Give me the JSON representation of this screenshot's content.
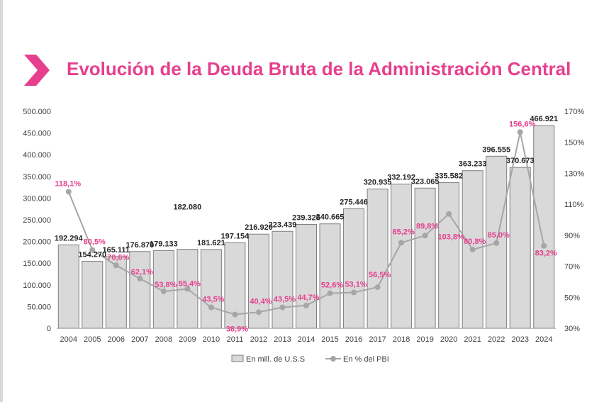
{
  "title": "Evolución de la Deuda Bruta de la Administración Central",
  "colors": {
    "accent": "#e63f8d",
    "bar_fill": "#d9d9d9",
    "bar_stroke": "#7f7f7f",
    "line": "#a6a6a6",
    "axis_text": "#404040"
  },
  "chart_data": {
    "type": "bar",
    "categories": [
      "2004",
      "2005",
      "2006",
      "2007",
      "2008",
      "2009",
      "2010",
      "2011",
      "2012",
      "2013",
      "2014",
      "2015",
      "2016",
      "2017",
      "2018",
      "2019",
      "2020",
      "2021",
      "2022",
      "2023",
      "2024"
    ],
    "series": [
      {
        "name": "En mill. de U.S.S",
        "type": "bar",
        "axis": "left",
        "values": [
          192294,
          154270,
          165111,
          176870,
          179133,
          182080,
          181621,
          197154,
          216920,
          223439,
          239326,
          240665,
          275446,
          320935,
          332192,
          323065,
          335582,
          363233,
          396555,
          370673,
          466921
        ],
        "labels": [
          "192.294",
          "154.270",
          "165.111",
          "176.870",
          "179.133",
          "182.080",
          "181.621",
          "197.154",
          "216.920",
          "223.439",
          "239.326",
          "240.665",
          "275.446",
          "320.935",
          "332.192",
          "323.065",
          "335.582",
          "363.233",
          "396.555",
          "370.673",
          "466.921"
        ]
      },
      {
        "name": "En % del PBI",
        "type": "line",
        "axis": "right",
        "values": [
          118.1,
          80.5,
          70.6,
          62.1,
          53.8,
          55.4,
          43.5,
          38.9,
          40.4,
          43.5,
          44.7,
          52.6,
          53.1,
          56.5,
          85.2,
          89.8,
          103.8,
          80.8,
          85.0,
          156.6,
          83.2
        ],
        "labels": [
          "118,1%",
          "80,5%",
          "70,6%",
          "62,1%",
          "53,8%",
          "55,4%",
          "43,5%",
          "38,9%",
          "40,4%",
          "43,5%",
          "44,7%",
          "52,6%",
          "53,1%",
          "56,5%",
          "85,2%",
          "89,8%",
          "103,8%",
          "80,8%",
          "85,0%",
          "156,6%",
          "83,2%"
        ]
      }
    ],
    "y_left": {
      "ylim": [
        0,
        500000
      ],
      "ticks": [
        0,
        50000,
        100000,
        150000,
        200000,
        250000,
        300000,
        350000,
        400000,
        450000,
        500000
      ],
      "tick_labels": [
        "0",
        "50.000",
        "100.000",
        "150.000",
        "200.000",
        "250.000",
        "300.000",
        "350.000",
        "400.000",
        "450.000",
        "500.000"
      ]
    },
    "y_right": {
      "ylim": [
        30,
        170
      ],
      "ticks": [
        30,
        50,
        70,
        90,
        110,
        130,
        150,
        170
      ],
      "tick_labels": [
        "30%",
        "50%",
        "70%",
        "90%",
        "110%",
        "130%",
        "150%",
        "170%"
      ]
    },
    "grid": false,
    "legend_position": "bottom"
  }
}
